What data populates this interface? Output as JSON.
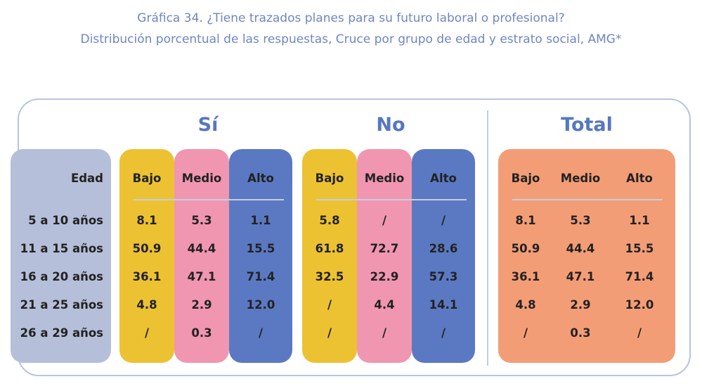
{
  "title_line1": "Gráfica 34. ¿Tiene trazados planes para su futuro laboral o profesional?",
  "title_line2": "Distribución porcentual de las respuestas, Cruce por grupo de edad y estrato social, AMG*",
  "colors": {
    "title": "#6f86c1",
    "group_title": "#5577bf",
    "edad_col": "#b6bfd9",
    "bajo": "#ecc233",
    "medio": "#f096b1",
    "alto": "#5b79c2",
    "total": "#f39d76",
    "frame": "#b8c4de"
  },
  "chart_data": {
    "type": "table",
    "row_header": "Edad",
    "rows": [
      "5 a 10 años",
      "11 a 15 años",
      "16 a 20 años",
      "21 a 25 años",
      "26 a 29 años"
    ],
    "groups": [
      {
        "name": "Sí",
        "columns": [
          {
            "name": "Bajo",
            "values": [
              "8.1",
              "50.9",
              "36.1",
              "4.8",
              "/"
            ]
          },
          {
            "name": "Medio",
            "values": [
              "5.3",
              "44.4",
              "47.1",
              "2.9",
              "0.3"
            ]
          },
          {
            "name": "Alto",
            "values": [
              "1.1",
              "15.5",
              "71.4",
              "12.0",
              "/"
            ]
          }
        ]
      },
      {
        "name": "No",
        "columns": [
          {
            "name": "Bajo",
            "values": [
              "5.8",
              "61.8",
              "32.5",
              "/",
              "/"
            ]
          },
          {
            "name": "Medio",
            "values": [
              "/",
              "72.7",
              "22.9",
              "4.4",
              "/"
            ]
          },
          {
            "name": "Alto",
            "values": [
              "/",
              "28.6",
              "57.3",
              "14.1",
              "/"
            ]
          }
        ]
      },
      {
        "name": "Total",
        "columns": [
          {
            "name": "Bajo",
            "values": [
              "8.1",
              "50.9",
              "36.1",
              "4.8",
              "/"
            ]
          },
          {
            "name": "Medio",
            "values": [
              "5.3",
              "44.4",
              "47.1",
              "2.9",
              "0.3"
            ]
          },
          {
            "name": "Alto",
            "values": [
              "1.1",
              "15.5",
              "71.4",
              "12.0",
              "/"
            ]
          }
        ]
      }
    ]
  }
}
